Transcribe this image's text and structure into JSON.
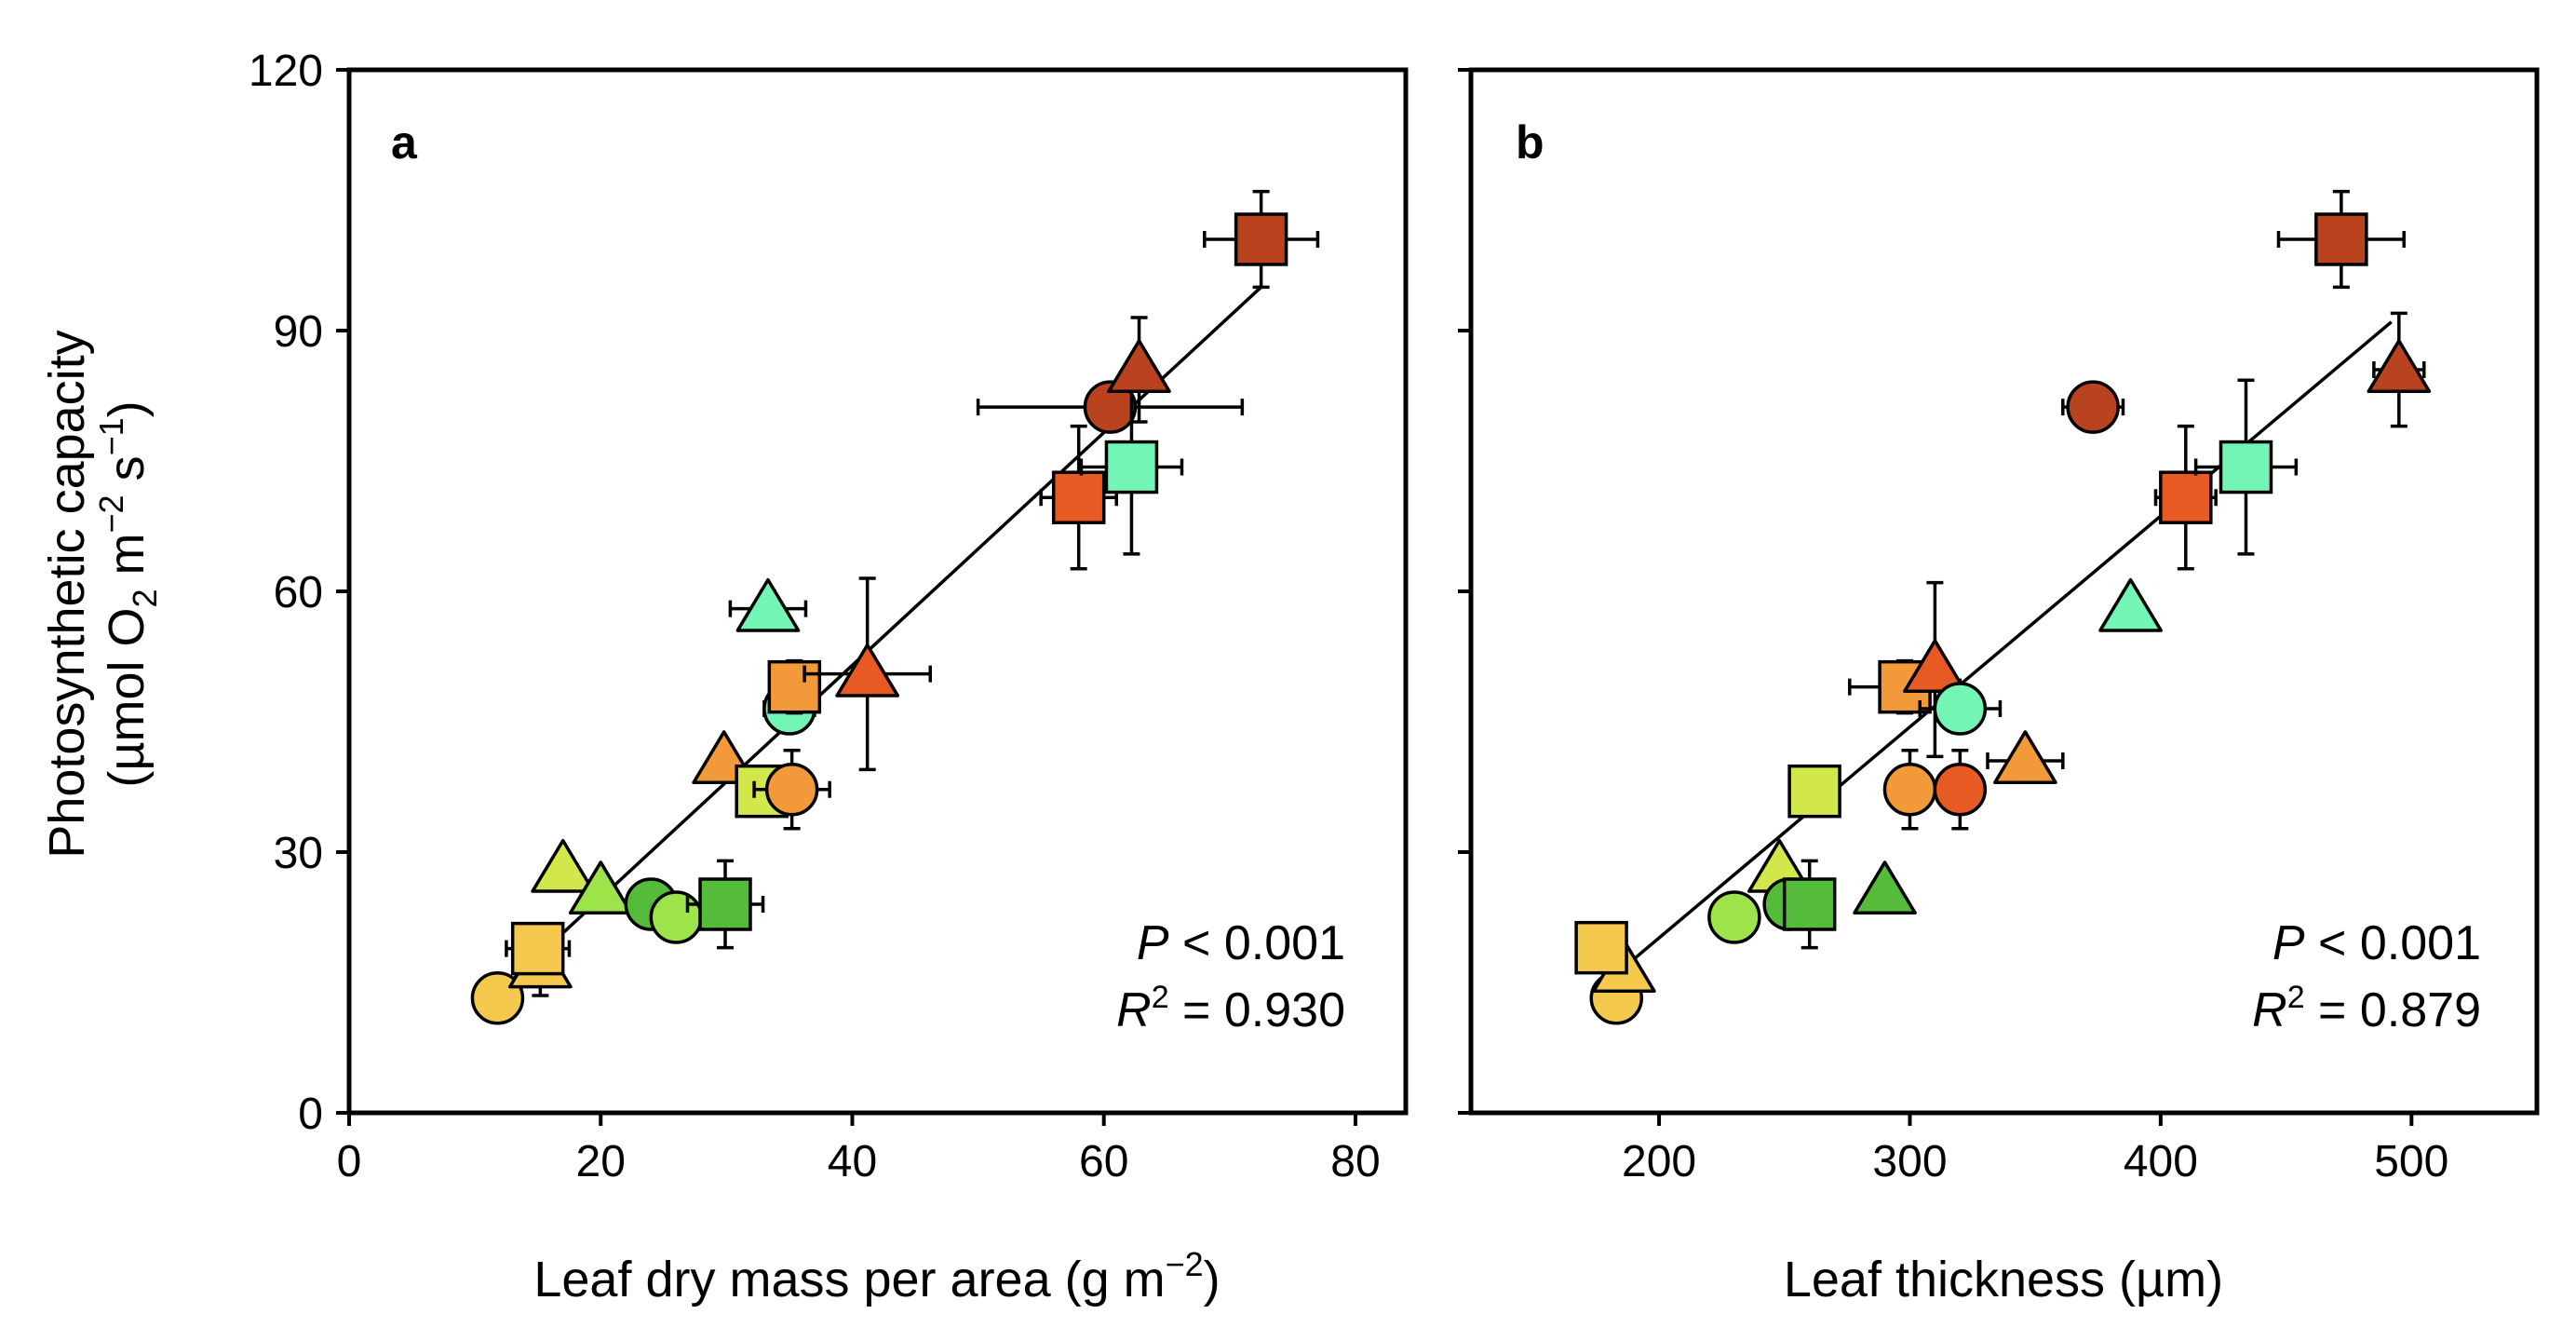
{
  "colors": {
    "c1": "#f4c94e",
    "c2": "#d2e84a",
    "c3": "#9de44a",
    "c4": "#55bc3b",
    "c5": "#72f5b5",
    "c6": "#f29a3a",
    "c7": "#e85a24",
    "c8": "#b8431e"
  },
  "chart_data": [
    {
      "type": "scatter",
      "panel": "a",
      "xlabel": "Leaf dry mass per area (g m−2)",
      "xlabel_main": "Leaf dry mass per area (g m",
      "xlabel_sup": "−2",
      "xlabel_end": ")",
      "ylabel_line1": "Photosynthetic capacity",
      "ylabel_line2_a": "(µmol O",
      "ylabel_line2_sub": "2",
      "ylabel_line2_b": " m",
      "ylabel_line2_sup1": "−2",
      "ylabel_line2_c": " s",
      "ylabel_line2_sup2": "−1",
      "ylabel_line2_d": ")",
      "xlim": [
        0,
        84
      ],
      "ylim": [
        0,
        120
      ],
      "xticks": [
        0,
        20,
        40,
        60,
        80
      ],
      "yticks": [
        0,
        30,
        60,
        90,
        120
      ],
      "stat_p_label": "P",
      "stat_p_value": " < 0.001",
      "stat_r_label": "R",
      "stat_r_sup": "2",
      "stat_r_value": " = 0.930",
      "fit_line": {
        "x": [
          12,
          72.5
        ],
        "y": [
          14,
          95
        ]
      },
      "points": [
        {
          "x": 11.8,
          "y": 13.2,
          "shape": "circle",
          "color": "c1",
          "xerr": 0,
          "yerr": 0
        },
        {
          "x": 15.2,
          "y": 17.0,
          "shape": "triangle",
          "color": "c1",
          "xerr": 1.5,
          "yerr": 3.5
        },
        {
          "x": 15.0,
          "y": 18.9,
          "shape": "square",
          "color": "c1",
          "xerr": 2.5,
          "yerr": 0
        },
        {
          "x": 17.0,
          "y": 28.0,
          "shape": "triangle",
          "color": "c2",
          "xerr": 0,
          "yerr": 0
        },
        {
          "x": 20.0,
          "y": 25.5,
          "shape": "triangle",
          "color": "c3",
          "xerr": 0,
          "yerr": 0
        },
        {
          "x": 24.0,
          "y": 24.0,
          "shape": "circle",
          "color": "c4",
          "xerr": 0,
          "yerr": 0
        },
        {
          "x": 26.0,
          "y": 22.5,
          "shape": "circle",
          "color": "c3",
          "xerr": 0,
          "yerr": 0
        },
        {
          "x": 29.9,
          "y": 24.0,
          "shape": "square",
          "color": "c4",
          "xerr": 3.0,
          "yerr": 5.0
        },
        {
          "x": 29.8,
          "y": 40.5,
          "shape": "triangle",
          "color": "c6",
          "xerr": 0,
          "yerr": 0
        },
        {
          "x": 32.8,
          "y": 37.0,
          "shape": "square",
          "color": "c2",
          "xerr": 0,
          "yerr": 0
        },
        {
          "x": 35.2,
          "y": 37.2,
          "shape": "circle",
          "color": "c6",
          "xerr": 3.0,
          "yerr": 4.5
        },
        {
          "x": 33.3,
          "y": 58.0,
          "shape": "triangle",
          "color": "c5",
          "xerr": 3.0,
          "yerr": 2.0
        },
        {
          "x": 35.0,
          "y": 46.5,
          "shape": "circle",
          "color": "c5",
          "xerr": 2.0,
          "yerr": 0
        },
        {
          "x": 35.4,
          "y": 49.0,
          "shape": "square",
          "color": "c6",
          "xerr": 0,
          "yerr": 3.0
        },
        {
          "x": 41.2,
          "y": 50.5,
          "shape": "triangle",
          "color": "c7",
          "xerr": 5.0,
          "yerr": 11.0
        },
        {
          "x": 58.0,
          "y": 70.8,
          "shape": "square",
          "color": "c7",
          "xerr": 3.0,
          "yerr": 8.2
        },
        {
          "x": 60.5,
          "y": 81.2,
          "shape": "circle",
          "color": "c8",
          "xerr": 10.5,
          "yerr": 0
        },
        {
          "x": 62.2,
          "y": 74.3,
          "shape": "square",
          "color": "c5",
          "xerr": 4.0,
          "yerr": 10.0
        },
        {
          "x": 62.8,
          "y": 85.5,
          "shape": "triangle",
          "color": "c8",
          "xerr": 0,
          "yerr": 6.0
        },
        {
          "x": 72.5,
          "y": 100.5,
          "shape": "square",
          "color": "c8",
          "xerr": 4.5,
          "yerr": 5.5
        }
      ]
    },
    {
      "type": "scatter",
      "panel": "b",
      "xlabel": "Leaf thickness (µm)",
      "xlim": [
        125,
        550
      ],
      "ylim": [
        0,
        120
      ],
      "xticks": [
        200,
        300,
        400,
        500
      ],
      "yticks": [
        0,
        30,
        60,
        90,
        120
      ],
      "stat_p_label": "P",
      "stat_p_value": " < 0.001",
      "stat_r_label": "R",
      "stat_r_sup": "2",
      "stat_r_value": " = 0.879",
      "fit_line": {
        "x": [
          183,
          492
        ],
        "y": [
          16,
          91
        ]
      },
      "points": [
        {
          "x": 183,
          "y": 13.2,
          "shape": "circle",
          "color": "c1",
          "xerr": 0,
          "yerr": 0
        },
        {
          "x": 186,
          "y": 16.5,
          "shape": "triangle",
          "color": "c1",
          "xerr": 0,
          "yerr": 0
        },
        {
          "x": 177,
          "y": 19.0,
          "shape": "square",
          "color": "c1",
          "xerr": 0,
          "yerr": 0
        },
        {
          "x": 230,
          "y": 22.5,
          "shape": "circle",
          "color": "c3",
          "xerr": 0,
          "yerr": 0
        },
        {
          "x": 248,
          "y": 28.0,
          "shape": "triangle",
          "color": "c2",
          "xerr": 0,
          "yerr": 0
        },
        {
          "x": 252,
          "y": 24.0,
          "shape": "circle",
          "color": "c4",
          "xerr": 0,
          "yerr": 0
        },
        {
          "x": 260,
          "y": 24.0,
          "shape": "square",
          "color": "c4",
          "xerr": 0,
          "yerr": 5.0
        },
        {
          "x": 262,
          "y": 37.0,
          "shape": "square",
          "color": "c2",
          "xerr": 0,
          "yerr": 0
        },
        {
          "x": 290,
          "y": 25.5,
          "shape": "triangle",
          "color": "c4",
          "xerr": 0,
          "yerr": 0
        },
        {
          "x": 300,
          "y": 37.2,
          "shape": "circle",
          "color": "c6",
          "xerr": 0,
          "yerr": 4.5
        },
        {
          "x": 298,
          "y": 49.0,
          "shape": "square",
          "color": "c6",
          "xerr": 22,
          "yerr": 3.0
        },
        {
          "x": 310,
          "y": 51.0,
          "shape": "triangle",
          "color": "c7",
          "xerr": 0,
          "yerr": 10.0
        },
        {
          "x": 320,
          "y": 37.2,
          "shape": "circle",
          "color": "c7",
          "xerr": 0,
          "yerr": 4.5
        },
        {
          "x": 320,
          "y": 46.5,
          "shape": "circle",
          "color": "c5",
          "xerr": 16,
          "yerr": 0
        },
        {
          "x": 346,
          "y": 40.5,
          "shape": "triangle",
          "color": "c6",
          "xerr": 15,
          "yerr": 0
        },
        {
          "x": 373,
          "y": 81.2,
          "shape": "circle",
          "color": "c8",
          "xerr": 12,
          "yerr": 0
        },
        {
          "x": 388,
          "y": 58.0,
          "shape": "triangle",
          "color": "c5",
          "xerr": 0,
          "yerr": 2.0
        },
        {
          "x": 410,
          "y": 70.8,
          "shape": "square",
          "color": "c7",
          "xerr": 12,
          "yerr": 8.2
        },
        {
          "x": 434,
          "y": 74.3,
          "shape": "square",
          "color": "c5",
          "xerr": 20,
          "yerr": 10.0
        },
        {
          "x": 472,
          "y": 100.5,
          "shape": "square",
          "color": "c8",
          "xerr": 25,
          "yerr": 5.5
        },
        {
          "x": 495,
          "y": 85.5,
          "shape": "triangle",
          "color": "c8",
          "xerr": 10,
          "yerr": 6.5
        }
      ]
    }
  ]
}
